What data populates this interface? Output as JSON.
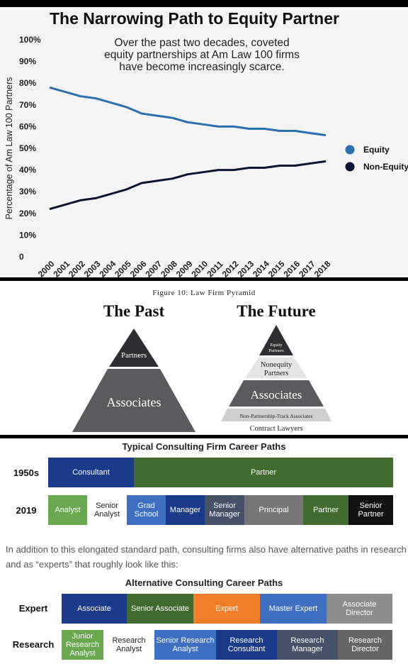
{
  "chart_data": {
    "type": "line",
    "title": "The Narrowing Path to Equity Partner",
    "subtitle": [
      "Over the past two decades, coveted",
      "equity partnerships at Am Law 100 firms",
      "have become increasingly scarce."
    ],
    "ylabel": "Percentage of Am Law 100 Partners",
    "xlabel": "",
    "ylim": [
      0,
      100
    ],
    "y_ticks": [
      "0",
      "10%",
      "20%",
      "30%",
      "40%",
      "50%",
      "60%",
      "70%",
      "80%",
      "90%",
      "100%"
    ],
    "x": [
      "2000",
      "2001",
      "2002",
      "2003",
      "2004",
      "2005",
      "2006",
      "2007",
      "2008",
      "2009",
      "2010",
      "2011",
      "2012",
      "2013",
      "2014",
      "2015",
      "2016",
      "2017",
      "2018"
    ],
    "series": [
      {
        "name": "Equity",
        "color": "#2b6fad",
        "values": [
          78,
          76,
          74,
          73,
          71,
          69,
          66,
          65,
          64,
          62,
          61,
          60,
          60,
          59,
          59,
          58,
          58,
          57,
          56
        ]
      },
      {
        "name": "Non-Equity",
        "color": "#0d1533",
        "values": [
          22,
          24,
          26,
          27,
          29,
          31,
          34,
          35,
          36,
          38,
          39,
          40,
          40,
          41,
          41,
          42,
          42,
          43,
          44
        ]
      }
    ],
    "legend_position": "right",
    "grid": false
  },
  "pyramid": {
    "figure_caption": "Figure 10: Law Firm Pyramid",
    "past": {
      "heading": "The Past",
      "tiers": [
        "Partners",
        "Associates"
      ]
    },
    "future": {
      "heading": "The Future",
      "tiers": [
        "Equity",
        "Partners",
        "Nonequity",
        "Partners",
        "Associates",
        "Non-Partnership-Track Associates",
        "Contract Lawyers"
      ]
    },
    "colors": {
      "dark": "#2e2e33",
      "mid": "#5a5a5f",
      "light": "#e4e4e6",
      "lighter": "#cfcfd2"
    }
  },
  "typical_paths": {
    "title": "Typical Consulting Firm Career Paths",
    "rows": [
      {
        "label": "1950s",
        "segments": [
          {
            "text": "Consultant",
            "color": "#1a3a8a"
          },
          {
            "text": "Partner",
            "color": "#426b30"
          }
        ]
      },
      {
        "label": "2019",
        "segments": [
          {
            "text": "Analyst",
            "color": "#6aa84f"
          },
          {
            "text": "Senior Analyst",
            "color": "#ffffff"
          },
          {
            "text": "Grad School",
            "color": "#3f6fc0"
          },
          {
            "text": "Manager",
            "color": "#1a3a8a"
          },
          {
            "text": "Senior Manager",
            "color": "#465268"
          },
          {
            "text": "Principal",
            "color": "#767676"
          },
          {
            "text": "Partner",
            "color": "#426b30"
          },
          {
            "text": "Senior Partner",
            "color": "#111111"
          }
        ]
      }
    ]
  },
  "paragraph": "In addition to this elongated standard path, consulting firms also have alternative paths in research and as “experts” that roughly look like this:",
  "alternative_paths": {
    "title": "Alternative Consulting Career Paths",
    "rows": [
      {
        "label": "Expert",
        "segments": [
          {
            "text": "Associate",
            "color": "#1a3a8a"
          },
          {
            "text": "Senior Associate",
            "color": "#426b30"
          },
          {
            "text": "Expert",
            "color": "#ef7d2a"
          },
          {
            "text": "Master Expert",
            "color": "#3f6fc0"
          },
          {
            "text": "Associate Director",
            "color": "#8c8c8c"
          }
        ]
      },
      {
        "label": "Research",
        "segments": [
          {
            "text": "Junior Research Analyst",
            "color": "#6aa84f"
          },
          {
            "text": "Research Analyst",
            "color": "#ffffff"
          },
          {
            "text": "Senior Research Analyst",
            "color": "#3f6fc0"
          },
          {
            "text": "Research Consultant",
            "color": "#1a3a8a"
          },
          {
            "text": "Research Manager",
            "color": "#465268"
          },
          {
            "text": "Research Director",
            "color": "#666666"
          }
        ]
      }
    ]
  }
}
